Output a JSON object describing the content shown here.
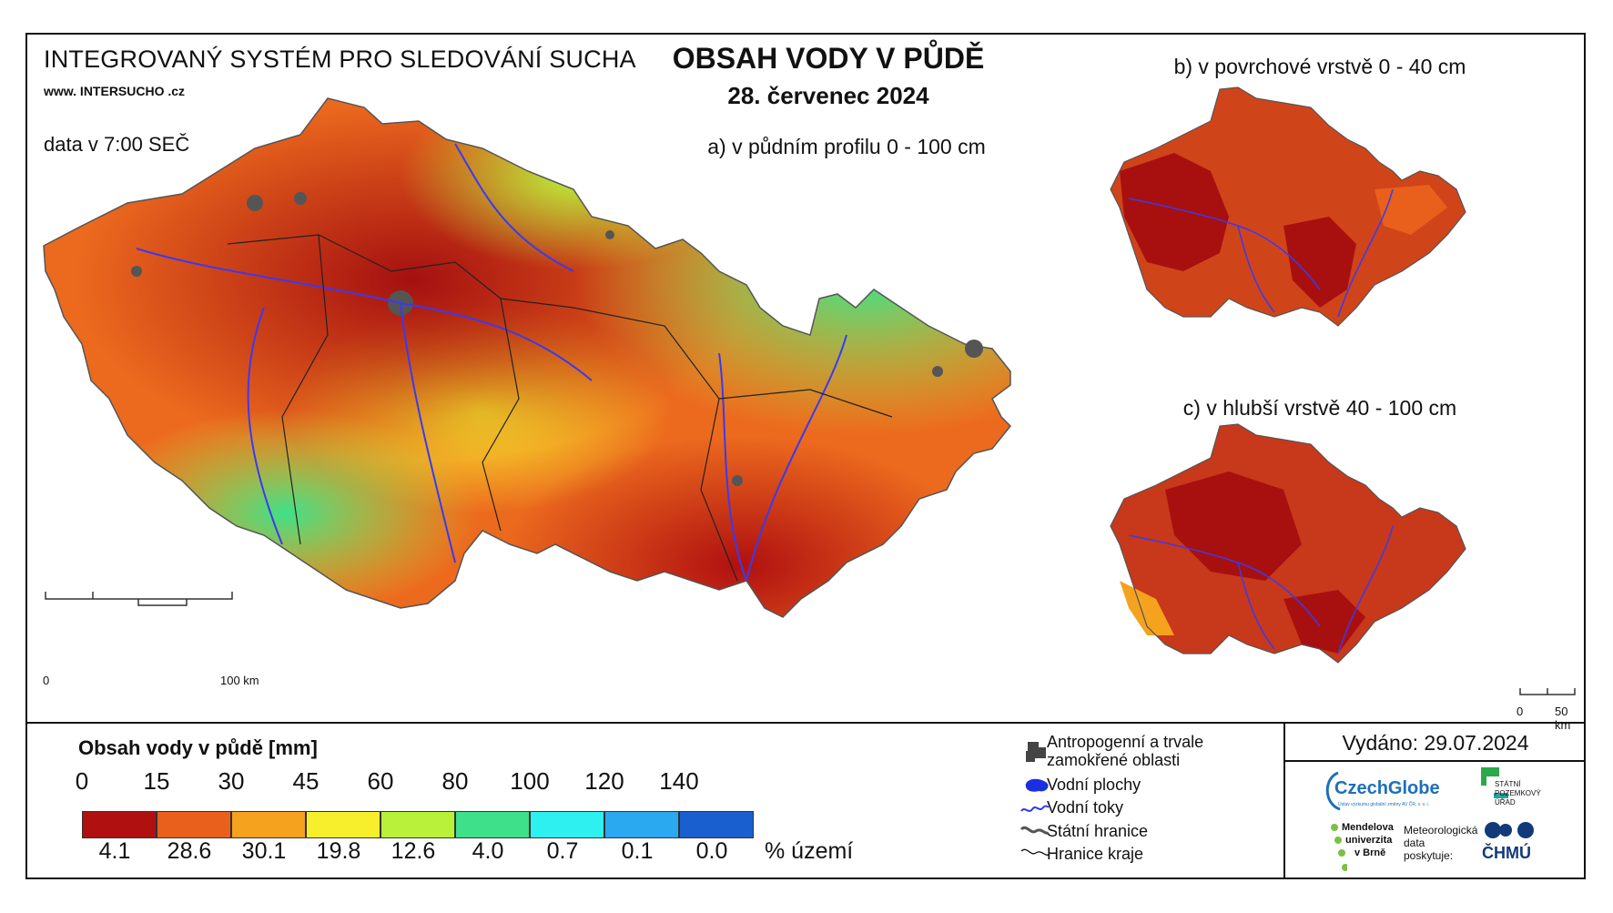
{
  "header": {
    "system_title": "INTEGROVANÝ SYSTÉM PRO SLEDOVÁNÍ SUCHA",
    "website": "www. INTERSUCHO .cz",
    "data_time": "data v 7:00 SEČ",
    "main_title": "OBSAH VODY V PŮDĚ",
    "date": "28. červenec 2024"
  },
  "maps": {
    "a_label": "a) v půdním profilu 0 - 100 cm",
    "b_label": "b) v povrchové vrstvě 0 - 40 cm",
    "c_label": "c) v hlubší vrstvě 40 - 100 cm",
    "scale_main": {
      "start": "0",
      "end": "100 km"
    },
    "scale_small": {
      "start": "0",
      "end": "50 km"
    }
  },
  "legend": {
    "title": "Obsah vody v půdě  [mm]",
    "ticks": [
      "0",
      "15",
      "30",
      "45",
      "60",
      "80",
      "100",
      "120",
      "140"
    ],
    "colors": [
      "#b01010",
      "#e8601c",
      "#f5a21f",
      "#f8ef2c",
      "#b8f03a",
      "#3fe08a",
      "#2ef0f0",
      "#2aa8f0",
      "#1a5fd0"
    ],
    "percentages": [
      "4.1",
      "28.6",
      "30.1",
      "19.8",
      "12.6",
      "4.0",
      "0.7",
      "0.1",
      "0.0"
    ],
    "percent_unit": "% území",
    "symbols": [
      {
        "icon": "urban-area-icon",
        "label_line1": "Antropogenní a trvale",
        "label_line2": "zamokřené oblasti"
      },
      {
        "icon": "water-body-icon",
        "label_line1": "Vodní plochy"
      },
      {
        "icon": "river-icon",
        "label_line1": "Vodní toky"
      },
      {
        "icon": "state-border-icon",
        "label_line1": "Státní hranice"
      },
      {
        "icon": "region-border-icon",
        "label_line1": "Hranice kraje"
      }
    ]
  },
  "footer": {
    "issued": "Vydáno: 29.07.2024",
    "logos": {
      "czechglobe": "CzechGlobe",
      "czechglobe_sub": "Ústav výzkumu globální změny AV ČR, v. v. i.",
      "spu": [
        "STÁTNÍ",
        "POZEMKOVÝ",
        "ÚŘAD"
      ],
      "mendel": [
        "Mendelova",
        "univerzita",
        "v Brně"
      ],
      "meteo": [
        "Meteorologická",
        "data",
        "poskytuje:"
      ],
      "chmu": "ČHMÚ"
    }
  }
}
